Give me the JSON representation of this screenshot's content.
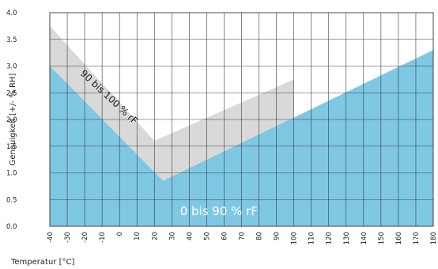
{
  "chart_data": {
    "type": "area",
    "xlabel": "Temperatur [°C]",
    "ylabel": "Genauigkeit [+/- % RH]",
    "xlim": [
      -40,
      180
    ],
    "ylim": [
      0,
      4
    ],
    "x_ticks": [
      -40,
      -30,
      -20,
      -10,
      0,
      10,
      20,
      30,
      40,
      50,
      60,
      70,
      80,
      90,
      100,
      110,
      120,
      130,
      140,
      150,
      160,
      170,
      180
    ],
    "y_ticks": [
      "0.0",
      "0.5",
      "1.0",
      "1.5",
      "2.0",
      "2.5",
      "3.0",
      "3.5",
      "4.0"
    ],
    "grid": true,
    "series": [
      {
        "name": "90 bis 100 % rF",
        "color": "#d9d9d9",
        "x": [
          -40,
          20,
          100
        ],
        "y": [
          3.75,
          1.6,
          2.75
        ]
      },
      {
        "name": "0 bis 90 % rF",
        "color": "#7ec8e3",
        "x": [
          -40,
          25,
          180
        ],
        "y": [
          3.0,
          0.85,
          3.3
        ]
      }
    ],
    "annotations": [
      {
        "text": "90 bis 100 % rF",
        "x": -6,
        "y": 2.42,
        "rotation": 43,
        "color": "#222222",
        "font_size": 12
      },
      {
        "text": "0 bis 90 % rF",
        "x": 57,
        "y": 0.28,
        "rotation": 0,
        "color": "#ffffff",
        "font_size": 15
      }
    ]
  }
}
